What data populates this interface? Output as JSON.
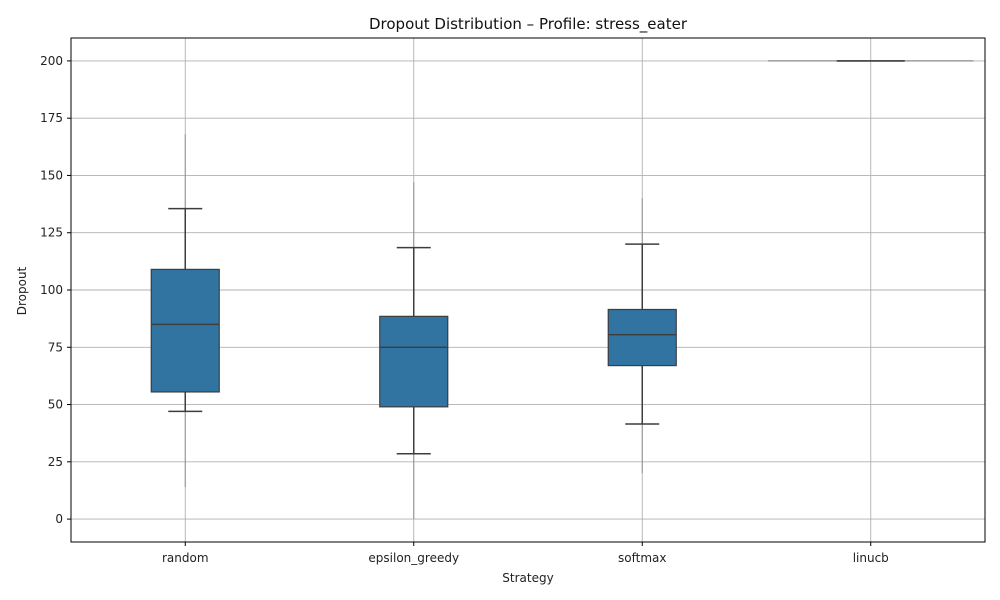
{
  "chart_data": {
    "type": "box",
    "title": "Dropout Distribution – Profile: stress_eater",
    "xlabel": "Strategy",
    "ylabel": "Dropout",
    "ylim": [
      -10,
      210
    ],
    "yticks": [
      0,
      25,
      50,
      75,
      100,
      125,
      150,
      175,
      200
    ],
    "grid": true,
    "box_color": "#3274a1",
    "categories": [
      "random",
      "epsilon_greedy",
      "softmax",
      "linucb"
    ],
    "boxes": [
      {
        "category": "random",
        "q1": 55.5,
        "median": 85,
        "q3": 109,
        "whisker_low": 47,
        "whisker_high": 135.5,
        "range_low": 14,
        "range_high": 168
      },
      {
        "category": "epsilon_greedy",
        "q1": 49,
        "median": 75,
        "q3": 88.5,
        "whisker_low": 28.5,
        "whisker_high": 118.5,
        "range_low": 0,
        "range_high": 147
      },
      {
        "category": "softmax",
        "q1": 67,
        "median": 80.5,
        "q3": 91.5,
        "whisker_low": 41.5,
        "whisker_high": 120,
        "range_low": 20,
        "range_high": 140
      },
      {
        "category": "linucb",
        "q1": 200,
        "median": 200,
        "q3": 200,
        "whisker_low": 200,
        "whisker_high": 200,
        "range_low": 200,
        "range_high": 200
      }
    ]
  }
}
